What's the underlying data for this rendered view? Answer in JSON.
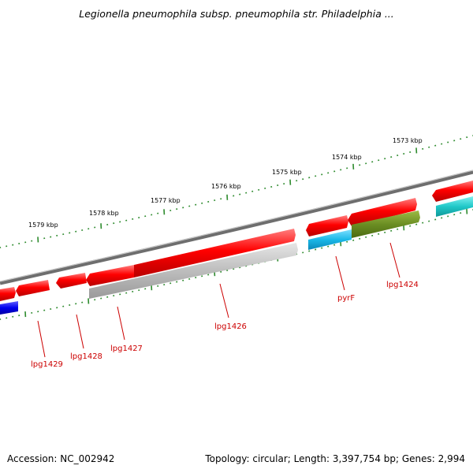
{
  "title": "Legionella pneumophila subsp. pneumophila str. Philadelphia ...",
  "footer": {
    "accession": "Accession: NC_002942",
    "summary": "Topology: circular; Length: 3,397,754 bp; Genes: 2,994"
  },
  "kbp_labels": [
    "1573 kbp",
    "1574 kbp",
    "1575 kbp",
    "1576 kbp",
    "1577 kbp",
    "1578 kbp",
    "1579 kbp"
  ],
  "gene_labels": [
    "lpg1424",
    "pyrF",
    "lpg1426",
    "lpg1427",
    "lpg1428",
    "lpg1429"
  ],
  "colors": {
    "cds": "#ff0000",
    "backbone": "#808080",
    "ticks": "#2e8b2e",
    "label": "#cc0000",
    "cyan": "#1ab8e8",
    "olive": "#6b8e23",
    "gray_feature": "#b4b4b4",
    "blue": "#0000ee",
    "teal": "#20c8c8"
  }
}
